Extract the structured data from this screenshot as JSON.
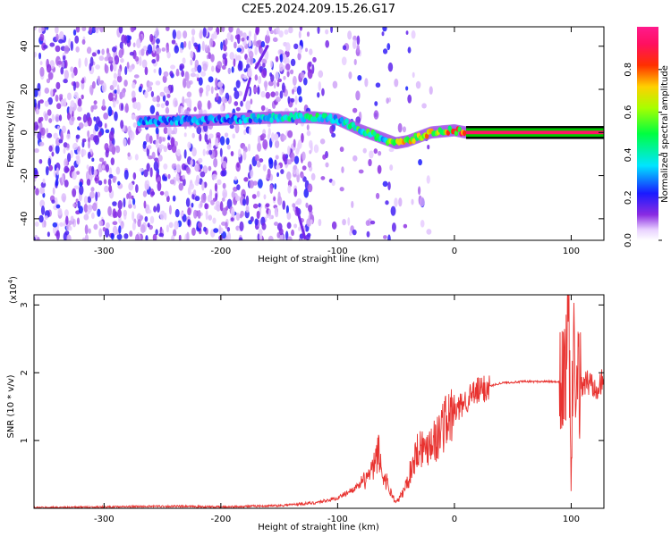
{
  "title": "C2E5.2024.209.15.26.G17",
  "colors": {
    "snr_line": "#e8322f",
    "phase_band": "#00c800",
    "axis": "#000000"
  },
  "chart_data": [
    {
      "type": "heatmap",
      "xlabel": "Height of straight line (km)",
      "ylabel": "Frequency (Hz)",
      "xlim": [
        -360,
        128
      ],
      "ylim": [
        -50,
        49
      ],
      "xticks": [
        -300,
        -200,
        -100,
        0,
        100
      ],
      "yticks": [
        -40,
        -20,
        0,
        20,
        40
      ],
      "colorbar": {
        "label": "Normalized spectral amplitude",
        "range": [
          0,
          1
        ],
        "ticks": [
          0.0,
          0.2,
          0.4,
          0.6,
          0.8
        ],
        "colormap": "white-purple-blue-cyan-green-yellow-red-magenta"
      },
      "ridge": {
        "description_points_height_km": [
          -270,
          -200,
          -150,
          -120,
          -100,
          -80,
          -60,
          -50,
          -40,
          -20,
          0,
          10,
          100,
          128
        ],
        "frequency_hz": [
          5,
          6,
          7,
          7,
          6,
          1,
          -3,
          -5,
          -4,
          0,
          1,
          0,
          0,
          0
        ],
        "amplitude": [
          0.35,
          0.35,
          0.45,
          0.5,
          0.45,
          0.55,
          0.5,
          0.75,
          0.75,
          0.8,
          0.85,
          0.95,
          0.95,
          0.95
        ]
      }
    },
    {
      "type": "line",
      "xlabel": "Height of straight line (km)",
      "ylabel": "SNR (10 * v/v)",
      "yscale_label": "(x10",
      "yscale_exp": "4",
      "yscale_close": ")",
      "xlim": [
        -360,
        128
      ],
      "ylim": [
        0,
        3.15
      ],
      "xticks": [
        -300,
        -200,
        -100,
        0,
        100
      ],
      "yticks": [
        1,
        2,
        3
      ],
      "series": [
        {
          "x": [
            -360,
            -300,
            -250,
            -200,
            -150,
            -120,
            -100,
            -90,
            -80,
            -70,
            -65,
            -62,
            -58,
            -55,
            -50,
            -45,
            -40,
            -35,
            -30,
            -25,
            -20,
            -15,
            -10,
            -5,
            0,
            10,
            20,
            30,
            40,
            50,
            60,
            80,
            90,
            95,
            98,
            100,
            102,
            104,
            106,
            110,
            120,
            128
          ],
          "y": [
            0.01,
            0.02,
            0.03,
            0.02,
            0.04,
            0.08,
            0.15,
            0.25,
            0.35,
            0.55,
            0.85,
            0.5,
            0.4,
            0.25,
            0.08,
            0.2,
            0.4,
            0.7,
            0.95,
            0.85,
            1.05,
            1.0,
            1.25,
            1.3,
            1.4,
            1.6,
            1.72,
            1.8,
            1.85,
            1.86,
            1.87,
            1.87,
            1.86,
            1.95,
            2.6,
            0.3,
            3.05,
            1.3,
            1.85,
            1.85,
            1.85,
            1.82
          ]
        }
      ]
    }
  ]
}
